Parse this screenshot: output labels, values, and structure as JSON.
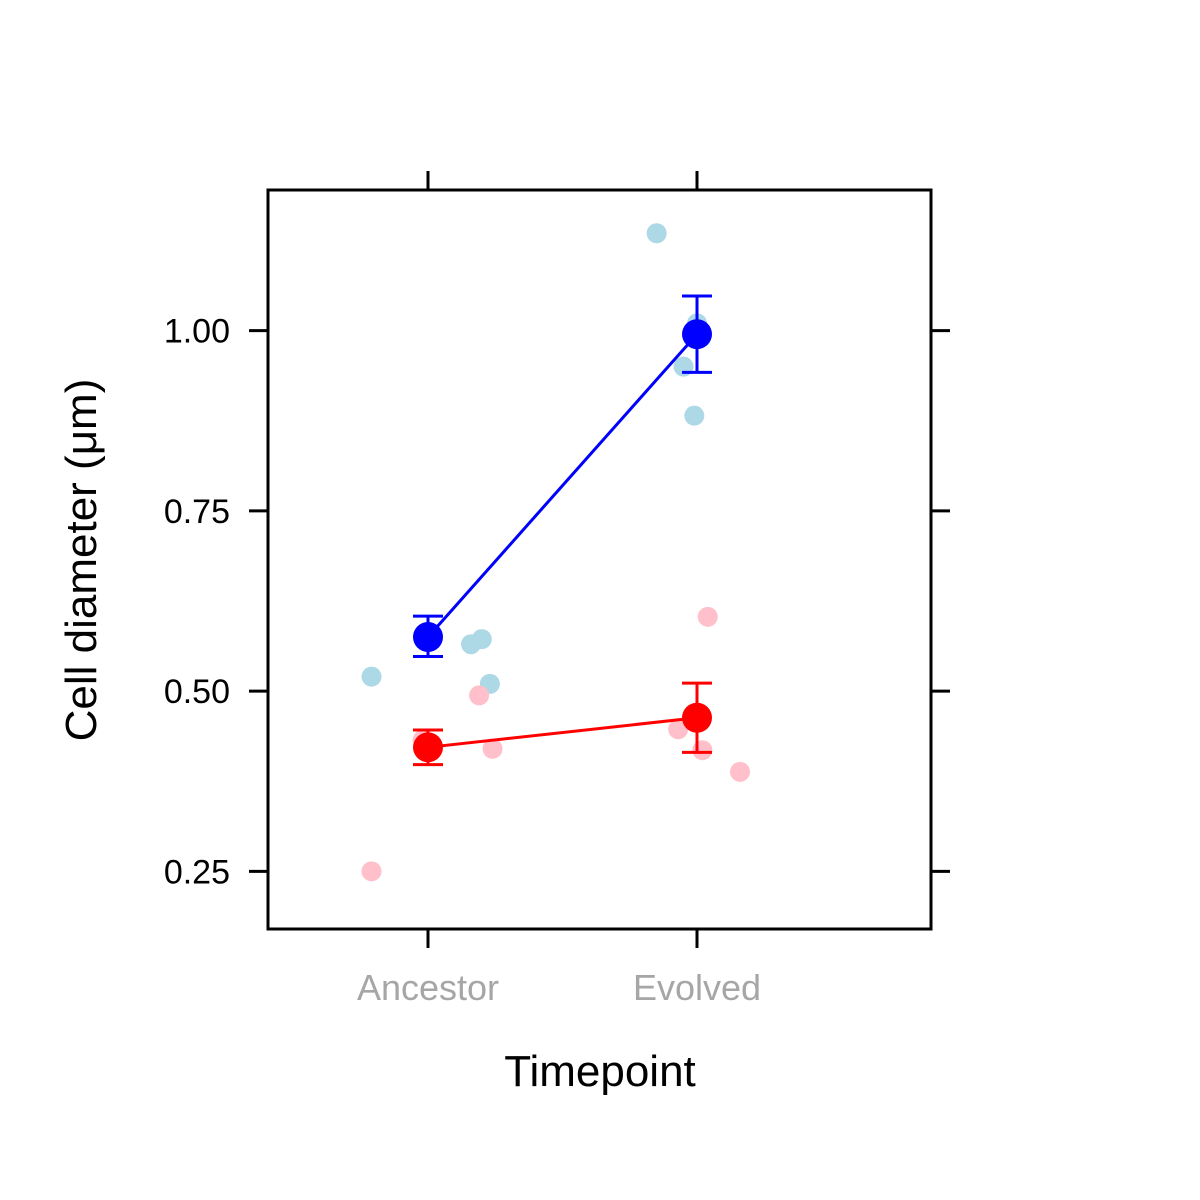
{
  "chart_data": {
    "type": "scatter",
    "xlabel": "Timepoint",
    "ylabel": "Cell diameter (μm)",
    "categories": [
      "Ancestor",
      "Evolved"
    ],
    "ylim": [
      0.17,
      1.195
    ],
    "yticks": [
      "0.25",
      "0.50",
      "0.75",
      "1.00"
    ],
    "grid": false,
    "legend": "none",
    "series": [
      {
        "color": "#0000ff",
        "point_color": "#add8e6",
        "means": [
          0.575,
          0.995
        ],
        "error_low": [
          0.548,
          0.942
        ],
        "error_high": [
          0.604,
          1.048
        ],
        "points": [
          {
            "category": "Ancestor",
            "offset": -0.21,
            "value": 0.52
          },
          {
            "category": "Ancestor",
            "offset": 0.16,
            "value": 0.565
          },
          {
            "category": "Ancestor",
            "offset": 0.2,
            "value": 0.572
          },
          {
            "category": "Ancestor",
            "offset": 0.23,
            "value": 0.51
          },
          {
            "category": "Evolved",
            "offset": -0.15,
            "value": 1.135
          },
          {
            "category": "Evolved",
            "offset": 0.0,
            "value": 1.01
          },
          {
            "category": "Evolved",
            "offset": -0.05,
            "value": 0.95
          },
          {
            "category": "Evolved",
            "offset": -0.01,
            "value": 0.882
          }
        ]
      },
      {
        "color": "#ff0000",
        "point_color": "#ffc0cb",
        "means": [
          0.422,
          0.463
        ],
        "error_low": [
          0.398,
          0.415
        ],
        "error_high": [
          0.446,
          0.511
        ],
        "points": [
          {
            "category": "Ancestor",
            "offset": -0.21,
            "value": 0.25
          },
          {
            "category": "Ancestor",
            "offset": 0.19,
            "value": 0.494
          },
          {
            "category": "Ancestor",
            "offset": 0.24,
            "value": 0.42
          },
          {
            "category": "Ancestor",
            "offset": -0.02,
            "value": 0.432
          },
          {
            "category": "Evolved",
            "offset": 0.04,
            "value": 0.603
          },
          {
            "category": "Evolved",
            "offset": -0.07,
            "value": 0.447
          },
          {
            "category": "Evolved",
            "offset": 0.02,
            "value": 0.418
          },
          {
            "category": "Evolved",
            "offset": 0.16,
            "value": 0.388
          }
        ]
      }
    ]
  }
}
